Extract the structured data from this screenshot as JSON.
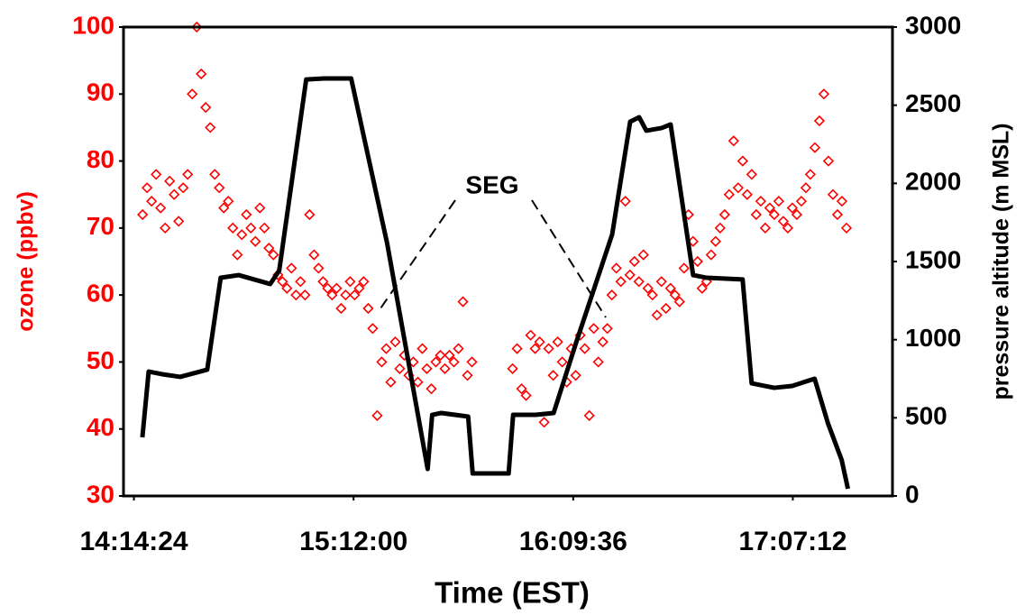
{
  "chart_data": {
    "type": "combo",
    "x_label": "Time (EST)",
    "y_label": "ozone (ppbv)",
    "y2_label": "pressure altitude (m MSL)",
    "annotation": "SEG",
    "xlim": [
      51100,
      63200
    ],
    "xticks": [
      {
        "value": 51264,
        "label": "14:14:24"
      },
      {
        "value": 54720,
        "label": "15:12:00"
      },
      {
        "value": 58176,
        "label": "16:09:36"
      },
      {
        "value": 61632,
        "label": "17:07:12"
      }
    ],
    "ylim": [
      30,
      100
    ],
    "yticks": [
      30,
      40,
      50,
      60,
      70,
      80,
      90,
      100
    ],
    "y2lim": [
      0,
      3000
    ],
    "y2ticks": [
      0,
      500,
      1000,
      1500,
      2000,
      2500,
      3000
    ],
    "y_color": "#ff0000",
    "y2_color": "#000000",
    "series": [
      {
        "type": "scatter",
        "color": "#ff0000",
        "x": [
          51400,
          51471,
          51542,
          51613,
          51684,
          51755,
          51826,
          51897,
          51968,
          52039,
          52110,
          52181,
          52252,
          52323,
          52394,
          52465,
          52536,
          52607,
          52678,
          52749,
          52820,
          52891,
          52962,
          53033,
          53104,
          53175,
          53246,
          53317,
          53388,
          53459,
          53530,
          53601,
          53672,
          53743,
          53814,
          53885,
          53956,
          54027,
          54098,
          54169,
          54240,
          54311,
          54382,
          54453,
          54524,
          54595,
          54666,
          54737,
          54808,
          54879,
          54950,
          55021,
          55092,
          55163,
          55234,
          55305,
          55376,
          55447,
          55518,
          55589,
          55660,
          55731,
          55802,
          55873,
          55944,
          56015,
          56086,
          56157,
          56228,
          56299,
          56370,
          56441,
          56512,
          56583,
          57222,
          57293,
          57364,
          57435,
          57506,
          57577,
          57648,
          57719,
          57790,
          57861,
          57932,
          58003,
          58074,
          58145,
          58216,
          58287,
          58358,
          58429,
          58500,
          58571,
          58642,
          58713,
          58784,
          58855,
          58926,
          58997,
          59068,
          59139,
          59210,
          59281,
          59352,
          59423,
          59494,
          59565,
          59636,
          59707,
          59778,
          59849,
          59920,
          59991,
          60062,
          60133,
          60204,
          60275,
          60346,
          60417,
          60488,
          60559,
          60630,
          60701,
          60772,
          60843,
          60914,
          60985,
          61056,
          61127,
          61198,
          61269,
          61340,
          61411,
          61482,
          61553,
          61624,
          61695,
          61766,
          61837,
          61908,
          61979,
          62050,
          62121,
          62192,
          62263,
          62334,
          62405,
          62476
        ],
        "values": [
          72,
          76,
          74,
          78,
          73,
          70,
          77,
          75,
          71,
          76,
          78,
          90,
          100,
          93,
          88,
          85,
          78,
          76,
          73,
          74,
          70,
          66,
          69,
          72,
          70,
          68,
          73,
          70,
          67,
          66,
          63,
          62,
          61,
          64,
          60,
          62,
          60,
          72,
          66,
          64,
          62,
          61,
          60,
          61,
          58,
          60,
          62,
          60,
          61,
          62,
          58,
          55,
          42,
          50,
          52,
          47,
          53,
          49,
          51,
          48,
          50,
          47,
          52,
          49,
          46,
          50,
          51,
          49,
          51,
          50,
          52,
          59,
          48,
          50,
          49,
          52,
          46,
          45,
          54,
          52,
          53,
          41,
          52,
          48,
          53,
          50,
          47,
          52,
          48,
          54,
          52,
          42,
          55,
          50,
          53,
          55,
          60,
          64,
          62,
          74,
          63,
          65,
          62,
          66,
          61,
          60,
          57,
          62,
          58,
          61,
          60,
          59,
          64,
          72,
          68,
          65,
          61,
          62,
          66,
          68,
          70,
          72,
          75,
          83,
          76,
          80,
          75,
          78,
          72,
          74,
          70,
          73,
          72,
          74,
          71,
          70,
          73,
          72,
          74,
          76,
          78,
          82,
          86,
          90,
          80,
          75,
          72,
          74,
          70
        ]
      },
      {
        "type": "line",
        "axis": "y2",
        "color": "#000000",
        "x": [
          51397,
          51496,
          51709,
          51992,
          52417,
          52629,
          52912,
          53408,
          53550,
          53975,
          54258,
          54682,
          55249,
          55886,
          55957,
          56099,
          56523,
          56594,
          57160,
          57231,
          57585,
          57868,
          58222,
          58789,
          59072,
          59214,
          59327,
          59568,
          59709,
          60063,
          60276,
          60842,
          60984,
          61338,
          61621,
          61975,
          62187,
          62400,
          62499
        ],
        "values": [
          375,
          796,
          779,
          762,
          808,
          1396,
          1413,
          1356,
          1442,
          2665,
          2671,
          2671,
          1615,
          173,
          519,
          531,
          508,
          144,
          144,
          519,
          519,
          531,
          981,
          1673,
          2394,
          2423,
          2337,
          2354,
          2377,
          1413,
          1396,
          1385,
          721,
          692,
          704,
          750,
          462,
          231,
          46
        ]
      }
    ]
  }
}
